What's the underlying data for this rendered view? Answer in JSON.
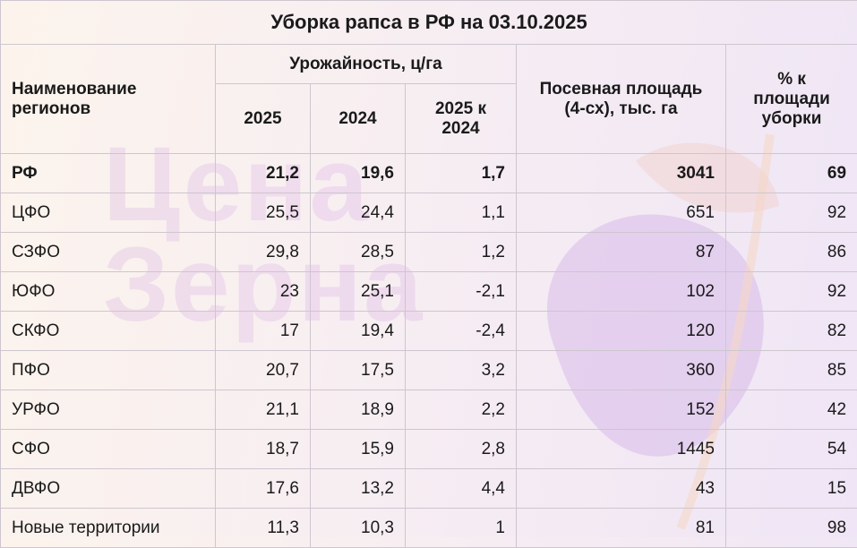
{
  "watermark": {
    "line1": "Цена",
    "line2": "Зерна"
  },
  "chart_data": {
    "type": "table",
    "title": "Уборка рапса в РФ на 03.10.2025",
    "headers": {
      "region": "Наименование регионов",
      "yield_group": "Урожайность, ц/га",
      "y2025": "2025",
      "y2024": "2024",
      "diff": "2025 к 2024",
      "area": "Посевная площадь (4-сх), тыс. га",
      "pct": "% к площади уборки"
    },
    "rows": [
      {
        "region": "РФ",
        "y2025": "21,2",
        "y2024": "19,6",
        "diff": "1,7",
        "area": "3041",
        "pct": "69"
      },
      {
        "region": "ЦФО",
        "y2025": "25,5",
        "y2024": "24,4",
        "diff": "1,1",
        "area": "651",
        "pct": "92"
      },
      {
        "region": "СЗФО",
        "y2025": "29,8",
        "y2024": "28,5",
        "diff": "1,2",
        "area": "87",
        "pct": "86"
      },
      {
        "region": "ЮФО",
        "y2025": "23",
        "y2024": "25,1",
        "diff": "-2,1",
        "area": "102",
        "pct": "92"
      },
      {
        "region": "СКФО",
        "y2025": "17",
        "y2024": "19,4",
        "diff": "-2,4",
        "area": "120",
        "pct": "82"
      },
      {
        "region": "ПФО",
        "y2025": "20,7",
        "y2024": "17,5",
        "diff": "3,2",
        "area": "360",
        "pct": "85"
      },
      {
        "region": "УРФО",
        "y2025": "21,1",
        "y2024": "18,9",
        "diff": "2,2",
        "area": "152",
        "pct": "42"
      },
      {
        "region": "СФО",
        "y2025": "18,7",
        "y2024": "15,9",
        "diff": "2,8",
        "area": "1445",
        "pct": "54"
      },
      {
        "region": "ДВФО",
        "y2025": "17,6",
        "y2024": "13,2",
        "diff": "4,4",
        "area": "43",
        "pct": "15"
      },
      {
        "region": "Новые территории",
        "y2025": "11,3",
        "y2024": "10,3",
        "diff": "1",
        "area": "81",
        "pct": "98"
      }
    ]
  }
}
